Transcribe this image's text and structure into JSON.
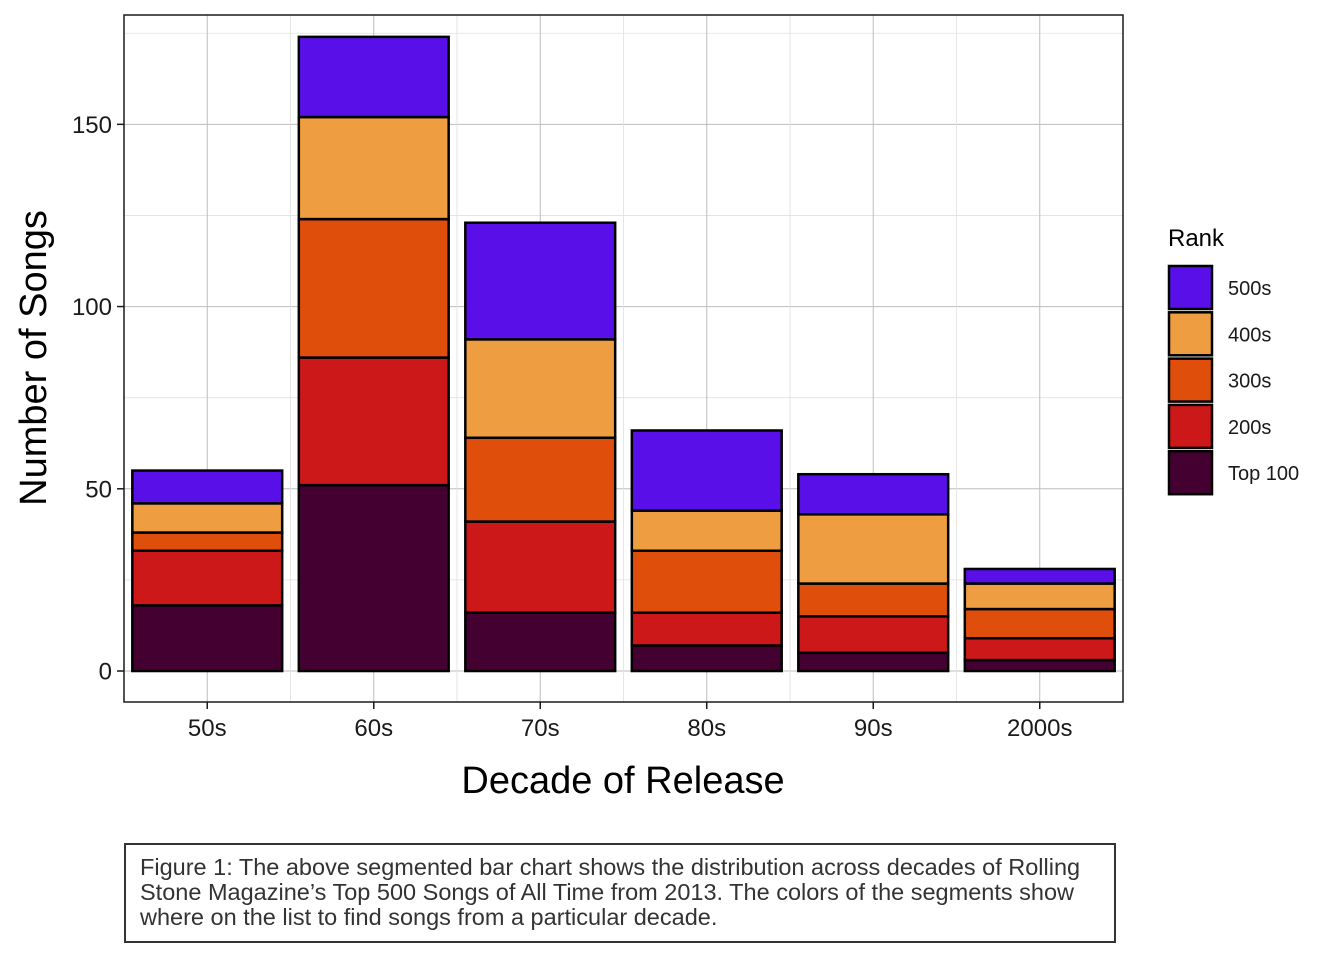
{
  "chart_data": {
    "type": "bar",
    "stacked": true,
    "xlabel": "Decade of Release",
    "ylabel": "Number of Songs",
    "categories": [
      "50s",
      "60s",
      "70s",
      "80s",
      "90s",
      "2000s"
    ],
    "yticks": [
      0,
      50,
      100,
      150
    ],
    "ylim": [
      -8.5,
      180
    ],
    "grid": true,
    "legend": {
      "title": "Rank",
      "position": "right"
    },
    "series": [
      {
        "name": "Top 100",
        "color": "#440030",
        "values": [
          18,
          51,
          16,
          7,
          5,
          3
        ]
      },
      {
        "name": "200s",
        "color": "#cc1818",
        "values": [
          15,
          35,
          25,
          9,
          10,
          6
        ]
      },
      {
        "name": "300s",
        "color": "#e04e0c",
        "values": [
          5,
          38,
          23,
          17,
          9,
          8
        ]
      },
      {
        "name": "400s",
        "color": "#ee9d40",
        "values": [
          8,
          28,
          27,
          11,
          19,
          7
        ]
      },
      {
        "name": "500s",
        "color": "#5910e8",
        "values": [
          9,
          22,
          32,
          22,
          11,
          4
        ]
      }
    ]
  },
  "caption": "Figure 1: The above segmented bar chart shows the distribution across decades of Rolling Stone Magazine’s Top 500 Songs of All Time from 2013. The colors of the segments show where on the list to find songs from a particular decade."
}
